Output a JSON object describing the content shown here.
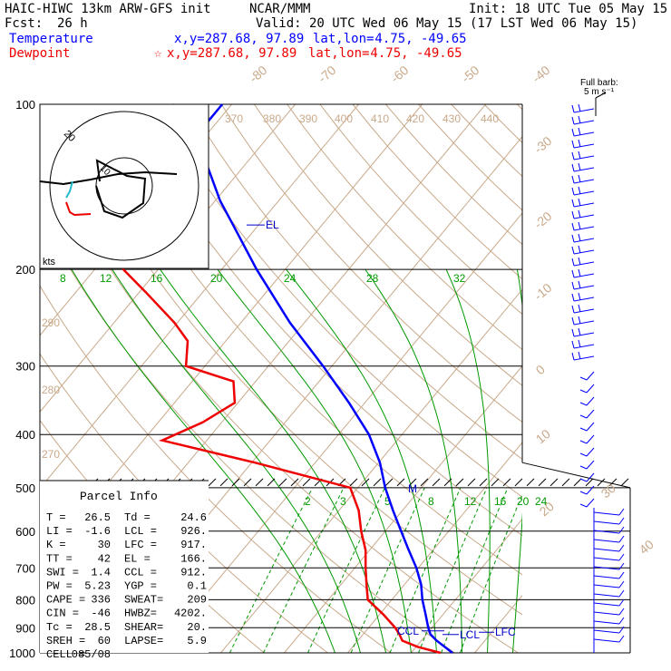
{
  "header": {
    "model": "HAIC-HIWC 13km ARW-GFS init",
    "org": "NCAR/MMM",
    "init": "Init: 18 UTC Tue 05 May 15",
    "fcst_label": "Fcst:",
    "fcst_value": "26 h",
    "valid": "Valid: 20 UTC Wed 06 May 15 (17 LST Wed 06 May 15)",
    "temperature_label": "Temperature",
    "dewpoint_label": "Dewpoint",
    "temp_xy": "x,y=287.68, 97.89",
    "dew_xy": "x,y=287.68, 97.89",
    "latlon_label": "lat,lon=",
    "latlon_value": " 4.75, -49.65"
  },
  "barb_legend": {
    "line1": "Full barb:",
    "line2": "5 m s⁻¹"
  },
  "hodograph": {
    "unit": "kts",
    "ring_label": "20",
    "inner_label": "10"
  },
  "parcel_info": {
    "title": "Parcel Info",
    "rows": [
      [
        "T  =",
        "26.5",
        "Td =",
        "24.6"
      ],
      [
        "LI =",
        "-1.6",
        "LCL =",
        "926."
      ],
      [
        "K  =",
        "30",
        "LFC =",
        "917."
      ],
      [
        "TT =",
        "42",
        "EL =",
        "166."
      ],
      [
        "SWI =",
        "1.4",
        "CCL =",
        "912."
      ],
      [
        "PW =",
        "5.23",
        "YGP =",
        "0.1"
      ],
      [
        "CAPE =",
        "336",
        "SWEAT=",
        "209"
      ],
      [
        "CIN =",
        "-46",
        "HWBZ=",
        "4202."
      ],
      [
        "Tc =",
        "28.5",
        "SHEAR=",
        "20."
      ],
      [
        "SREH =",
        "60",
        "LAPSE=",
        "5.9"
      ],
      [
        "CELL =",
        "085/08",
        "",
        ""
      ]
    ]
  },
  "chart_data": {
    "type": "line",
    "title": "HAIC-HIWC 13km ARW-GFS init",
    "xlabel": "",
    "ylabel": "",
    "pressure_levels": [
      100,
      200,
      300,
      400,
      500,
      600,
      700,
      800,
      900,
      1000
    ],
    "ylim": [
      1000,
      100
    ],
    "isotherm_labels": [
      "-80",
      "-70",
      "-60",
      "-50",
      "-40",
      "-30",
      "-20",
      "-10",
      "0",
      "10",
      "20",
      "30",
      "40"
    ],
    "theta_labels": [
      "370",
      "380",
      "390",
      "400",
      "410",
      "420",
      "430",
      "440",
      "290",
      "280",
      "270"
    ],
    "theta_e_labels": [
      "8",
      "12",
      "16",
      "20",
      "24",
      "28",
      "32"
    ],
    "mixing_ratio_labels": [
      "2",
      "3",
      "5",
      "8",
      "12",
      "16",
      "20",
      "24"
    ],
    "series": [
      {
        "name": "Temperature",
        "color": "#0000ff",
        "points": [
          [
            1000,
            26.5
          ],
          [
            950,
            22.4
          ],
          [
            925,
            20.6
          ],
          [
            900,
            19.4
          ],
          [
            850,
            17.2
          ],
          [
            800,
            14.8
          ],
          [
            750,
            12.6
          ],
          [
            700,
            9.7
          ],
          [
            650,
            6.2
          ],
          [
            600,
            2.5
          ],
          [
            550,
            -1.5
          ],
          [
            500,
            -5.7
          ],
          [
            450,
            -9.8
          ],
          [
            400,
            -15.2
          ],
          [
            350,
            -22.5
          ],
          [
            300,
            -31.4
          ],
          [
            250,
            -42.3
          ],
          [
            200,
            -54.5
          ],
          [
            166,
            -64.0
          ],
          [
            150,
            -69.2
          ],
          [
            125,
            -77.4
          ],
          [
            110,
            -81.5
          ],
          [
            100,
            -81.5
          ]
        ]
      },
      {
        "name": "Dewpoint",
        "color": "#ee0000",
        "points": [
          [
            1000,
            24.6
          ],
          [
            975,
            20.2
          ],
          [
            950,
            17.0
          ],
          [
            925,
            15.7
          ],
          [
            900,
            14.2
          ],
          [
            850,
            10.5
          ],
          [
            800,
            6.2
          ],
          [
            750,
            4.0
          ],
          [
            700,
            1.7
          ],
          [
            650,
            -0.6
          ],
          [
            600,
            -3.8
          ],
          [
            550,
            -6.9
          ],
          [
            500,
            -11.2
          ],
          [
            450,
            -29.5
          ],
          [
            410,
            -47.0
          ],
          [
            380,
            -43.0
          ],
          [
            350,
            -40.5
          ],
          [
            320,
            -43.5
          ],
          [
            300,
            -53.0
          ],
          [
            270,
            -56.0
          ],
          [
            250,
            -60.5
          ],
          [
            220,
            -69.0
          ],
          [
            200,
            -75.5
          ],
          [
            150,
            -87.0
          ],
          [
            120,
            -90.0
          ],
          [
            100,
            -89.0
          ]
        ]
      }
    ],
    "annotations": [
      "EL",
      "LFC",
      "LCL",
      "CCL",
      "M"
    ]
  },
  "colors": {
    "temperature": "#0000ff",
    "dewpoint": "#ee0000",
    "isotherm": "#c9a98a",
    "mixing": "#009900",
    "grid": "#000000"
  }
}
